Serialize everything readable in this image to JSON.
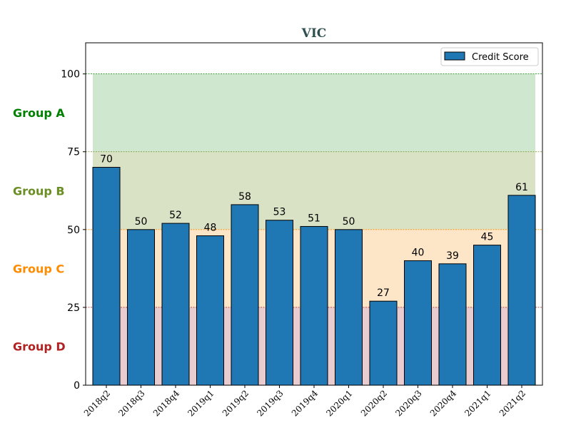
{
  "chart_data": {
    "type": "bar",
    "title": "VIC",
    "title_color": "#2f4f4f",
    "xlabel": "",
    "ylabel": "",
    "ylim": [
      0,
      110
    ],
    "yticks": [
      0,
      25,
      50,
      75,
      100
    ],
    "categories": [
      "2018q2",
      "2018q3",
      "2018q4",
      "2019q1",
      "2019q2",
      "2019q3",
      "2019q4",
      "2020q1",
      "2020q2",
      "2020q3",
      "2020q4",
      "2021q1",
      "2021q2"
    ],
    "series": [
      {
        "name": "Credit Score",
        "color": "#1f77b4",
        "values": [
          70,
          50,
          52,
          48,
          58,
          53,
          51,
          50,
          27,
          40,
          39,
          45,
          61
        ]
      }
    ],
    "legend": {
      "position": "top-right",
      "label": "Credit Score"
    },
    "grid": false,
    "bands": [
      {
        "label": "Group A",
        "from": 75,
        "to": 100,
        "fill": "#cfe6cf",
        "text_color": "#008000",
        "line_color": "#008000"
      },
      {
        "label": "Group B",
        "from": 50,
        "to": 75,
        "fill": "#d9e2c5",
        "text_color": "#6b8e23",
        "line_color": "#6b8e23"
      },
      {
        "label": "Group C",
        "from": 25,
        "to": 50,
        "fill": "#fde5c7",
        "text_color": "#ff8c00",
        "line_color": "#ff8c00"
      },
      {
        "label": "Group D",
        "from": 0,
        "to": 25,
        "fill": "#e9ccd0",
        "text_color": "#b22222",
        "line_color": "#b22222"
      }
    ]
  }
}
